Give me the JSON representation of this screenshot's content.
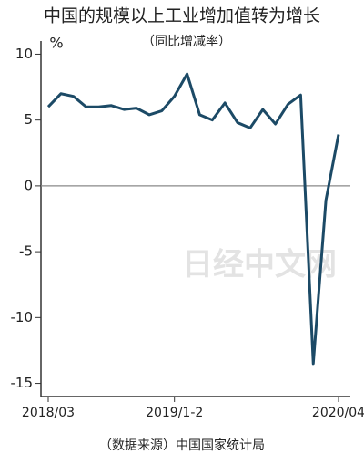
{
  "chart_data": {
    "type": "line",
    "title": "中国的规模以上工业增加值转为增长",
    "subtitle": "（同比增减率）",
    "y_label": "%",
    "source": "（数据来源）中国国家统计局",
    "watermark": "日经中文网",
    "categories": [
      "2018/03",
      null,
      null,
      null,
      null,
      null,
      null,
      null,
      null,
      null,
      "2019/1-2",
      null,
      null,
      null,
      null,
      null,
      null,
      null,
      null,
      null,
      null,
      null,
      null,
      "2020/04"
    ],
    "series": [
      {
        "name": "工业增加值",
        "color": "#1c4a66",
        "values": [
          6.0,
          7.0,
          6.8,
          6.0,
          6.0,
          6.1,
          5.8,
          5.9,
          5.4,
          5.7,
          6.8,
          8.5,
          5.4,
          5.0,
          6.3,
          4.8,
          4.4,
          5.8,
          4.7,
          6.2,
          6.9,
          -13.5,
          -1.1,
          3.9
        ]
      }
    ],
    "ylim": [
      -16,
      11
    ],
    "yticks": [
      10,
      5,
      0,
      -5,
      -10,
      -15
    ],
    "zero_line": true
  }
}
